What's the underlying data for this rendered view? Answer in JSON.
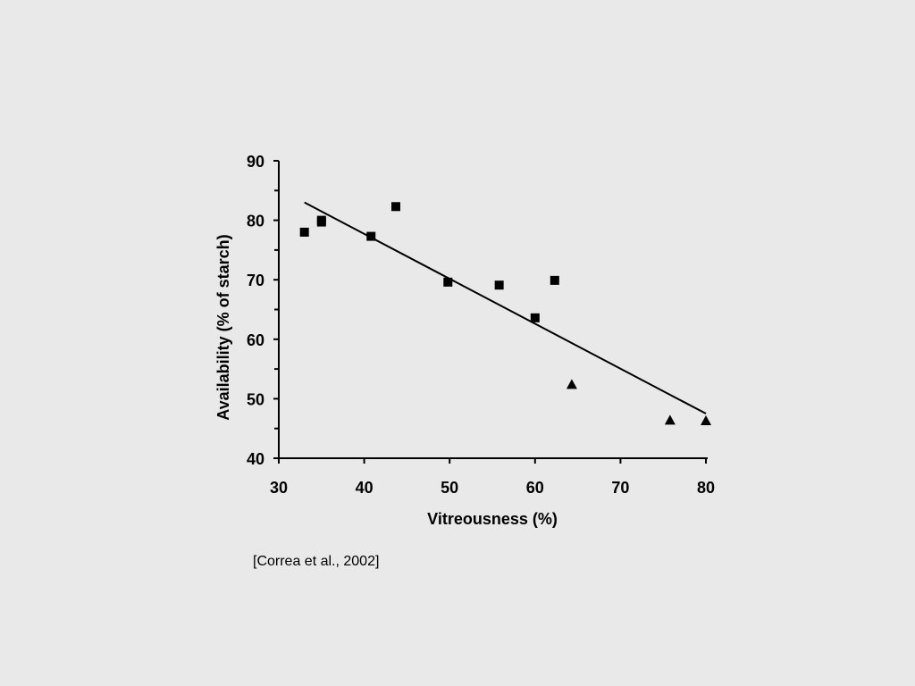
{
  "citation": "[Correa et al., 2002]",
  "colors": {
    "background": "#e9e9e9",
    "ink": "#000000"
  },
  "chart_data": {
    "type": "scatter",
    "title": "",
    "xlabel": "Vitreousness (%)",
    "ylabel": "Availability (% of starch)",
    "xlim": [
      30,
      80
    ],
    "ylim": [
      40,
      90
    ],
    "xticks": [
      30,
      40,
      50,
      60,
      70,
      80
    ],
    "yticks": [
      40,
      50,
      60,
      70,
      80,
      90
    ],
    "grid": false,
    "series": [
      {
        "marker": "square",
        "points": [
          {
            "x": 33.0,
            "y": 78.0
          },
          {
            "x": 35.0,
            "y": 80.0
          },
          {
            "x": 35.0,
            "y": 79.7
          },
          {
            "x": 40.8,
            "y": 77.3
          },
          {
            "x": 43.7,
            "y": 82.3
          },
          {
            "x": 49.8,
            "y": 69.6
          },
          {
            "x": 55.8,
            "y": 69.1
          },
          {
            "x": 60.0,
            "y": 63.6
          },
          {
            "x": 62.3,
            "y": 69.9
          }
        ]
      },
      {
        "marker": "triangle",
        "points": [
          {
            "x": 64.3,
            "y": 52.4
          },
          {
            "x": 75.8,
            "y": 46.4
          },
          {
            "x": 80.0,
            "y": 46.3
          }
        ]
      }
    ],
    "trendline": {
      "x": [
        33.0,
        80.0
      ],
      "y": [
        83.0,
        47.5
      ]
    }
  }
}
